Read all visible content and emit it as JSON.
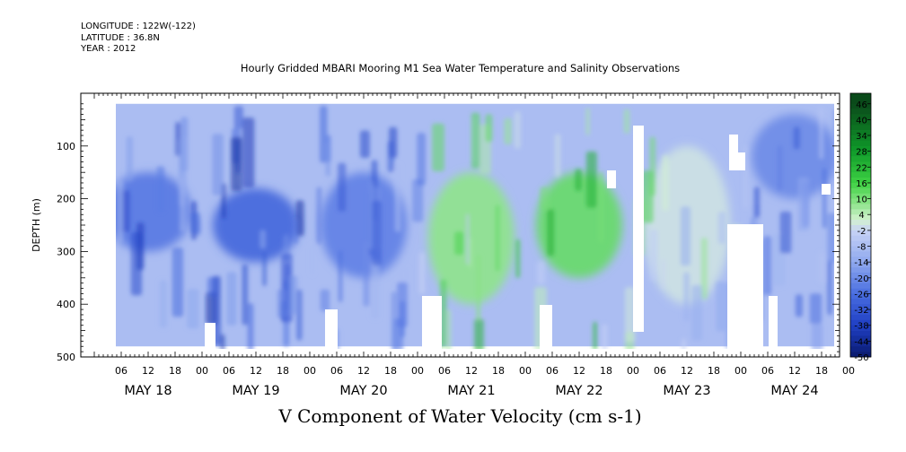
{
  "meta": {
    "longitude": "LONGITUDE : 122W(-122)",
    "latitude": "LATITUDE : 36.8N",
    "year": "YEAR : 2012"
  },
  "chart_data": {
    "type": "heatmap",
    "title": "Hourly Gridded MBARI Mooring M1 Sea Water Temperature and Salinity Observations",
    "variable_label": "V Component of Water Velocity (cm s-1)",
    "ylabel": "DEPTH (m)",
    "ylim": [
      0,
      500
    ],
    "y_inverted": true,
    "y_ticks": [
      100,
      200,
      300,
      400,
      500
    ],
    "x_tick_labels": [
      "06",
      "12",
      "18",
      "00",
      "06",
      "12",
      "18",
      "00",
      "06",
      "12",
      "18",
      "00",
      "06",
      "12",
      "18",
      "00",
      "06",
      "12",
      "18",
      "00",
      "06",
      "12",
      "18",
      "00",
      "06",
      "12",
      "18",
      "00"
    ],
    "x_day_labels": [
      "MAY 18",
      "MAY 19",
      "MAY 20",
      "MAY 21",
      "MAY 22",
      "MAY 23",
      "MAY 24"
    ],
    "colorbar": {
      "labels": [
        "46",
        "40",
        "34",
        "28",
        "22",
        "16",
        "10",
        "4",
        "-2",
        "-8",
        "-14",
        "-20",
        "-26",
        "-32",
        "-38",
        "-44",
        "-50"
      ],
      "range": [
        -50,
        50
      ]
    },
    "data_extent": {
      "depth_top_m": 20,
      "depth_bottom_m": 480
    },
    "velocity_pattern": [
      {
        "day": "MAY 18",
        "depth_m": "150-300",
        "velocity": -24
      },
      {
        "day": "MAY 19",
        "depth_m": "180-320",
        "velocity": -28
      },
      {
        "day": "MAY 20",
        "depth_m": "150-350",
        "velocity": -22
      },
      {
        "day": "MAY 21",
        "depth_m": "150-400",
        "velocity": 8
      },
      {
        "day": "MAY 22",
        "depth_m": "150-350",
        "velocity": 12
      },
      {
        "day": "MAY 23",
        "depth_m": "100-400",
        "velocity": 0
      },
      {
        "day": "MAY 24",
        "depth_m": "40-200",
        "velocity": -20
      }
    ]
  }
}
